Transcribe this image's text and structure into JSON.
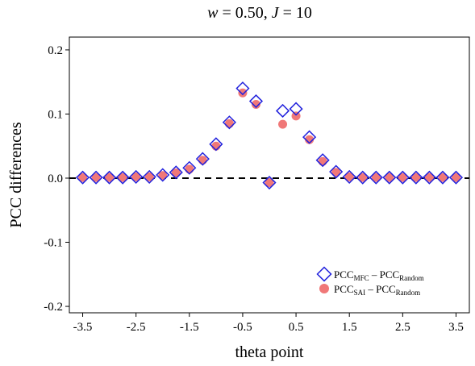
{
  "chart_data": {
    "type": "scatter",
    "title": {
      "italic_w": "w",
      "eq_w": " = 0.50, ",
      "italic_j": "J",
      "eq_j": " = 10"
    },
    "xlabel": "theta point",
    "ylabel": "PCC differences",
    "xlim": [
      -3.75,
      3.75
    ],
    "ylim": [
      -0.21,
      0.22
    ],
    "xticks": [
      -3.5,
      -2.5,
      -1.5,
      -0.5,
      0.5,
      1.5,
      2.5,
      3.5
    ],
    "xtick_labels": [
      "-3.5",
      "-2.5",
      "-1.5",
      "-0.5",
      "0.5",
      "1.5",
      "2.5",
      "3.5"
    ],
    "yticks": [
      -0.2,
      -0.1,
      0.0,
      0.1,
      0.2
    ],
    "ytick_labels": [
      "-0.2",
      "-0.1",
      "0.0",
      "0.1",
      "0.2"
    ],
    "reference_line": {
      "y": 0,
      "style": "dashed"
    },
    "grid": false,
    "legend_position": "bottom-right",
    "x": [
      -3.5,
      -3.25,
      -3.0,
      -2.75,
      -2.5,
      -2.25,
      -2.0,
      -1.75,
      -1.5,
      -1.25,
      -1.0,
      -0.75,
      -0.5,
      -0.25,
      0.0,
      0.25,
      0.5,
      0.75,
      1.0,
      1.25,
      1.5,
      1.75,
      2.0,
      2.25,
      2.5,
      2.75,
      3.0,
      3.25,
      3.5
    ],
    "series": [
      {
        "legend": {
          "main1": "PCC",
          "sub1": "MFC",
          "mid": " – PCC",
          "sub2": "Random"
        },
        "marker": "diamond-open",
        "color": "#2222dd",
        "values": [
          0.001,
          0.001,
          0.001,
          0.001,
          0.002,
          0.002,
          0.005,
          0.009,
          0.016,
          0.03,
          0.053,
          0.087,
          0.14,
          0.12,
          -0.007,
          0.105,
          0.108,
          0.064,
          0.028,
          0.01,
          0.002,
          0.001,
          0.001,
          0.001,
          0.001,
          0.001,
          0.001,
          0.001,
          0.001
        ]
      },
      {
        "legend": {
          "main1": "PCC",
          "sub1": "SAI",
          "mid": " – PCC",
          "sub2": "Random"
        },
        "marker": "circle-filled",
        "color": "#f07878",
        "values": [
          0.001,
          0.001,
          0.001,
          0.001,
          0.002,
          0.002,
          0.004,
          0.008,
          0.014,
          0.028,
          0.05,
          0.085,
          0.133,
          0.115,
          -0.007,
          0.084,
          0.097,
          0.06,
          0.026,
          0.009,
          0.002,
          0.001,
          0.001,
          0.001,
          0.001,
          0.001,
          0.001,
          0.001,
          0.001
        ]
      }
    ]
  }
}
